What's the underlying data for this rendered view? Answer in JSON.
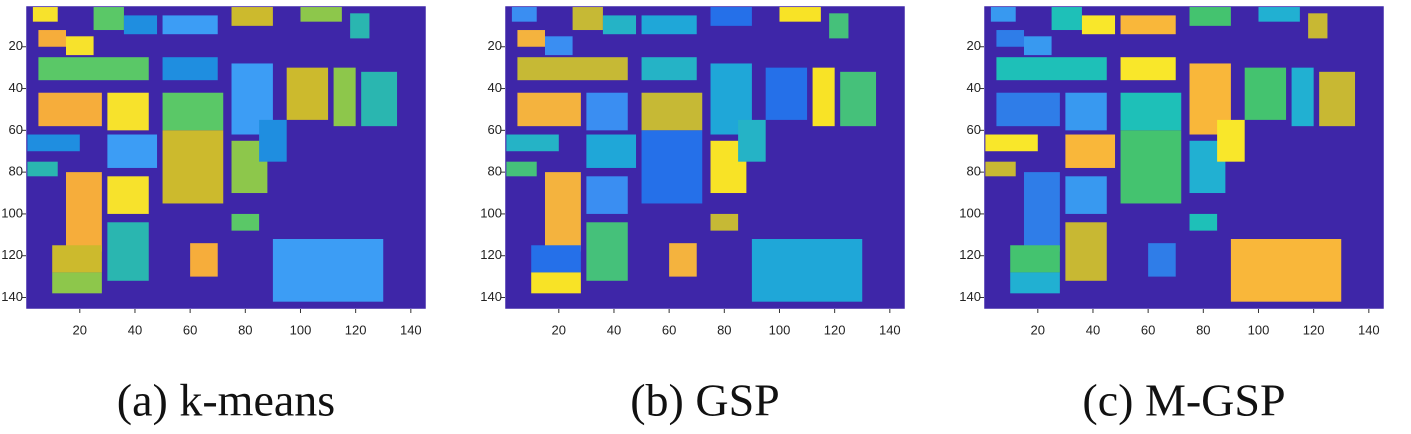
{
  "panels": [
    {
      "caption": "(a) k-means",
      "xlim": [
        0.5,
        145.5
      ],
      "ylim": [
        0.5,
        145.5
      ],
      "xticks": [
        20,
        40,
        60,
        80,
        100,
        120,
        140
      ],
      "yticks": [
        20,
        40,
        60,
        80,
        100,
        120,
        140
      ]
    },
    {
      "caption": "(b) GSP",
      "xlim": [
        0.5,
        145.5
      ],
      "ylim": [
        0.5,
        145.5
      ],
      "xticks": [
        20,
        40,
        60,
        80,
        100,
        120,
        140
      ],
      "yticks": [
        20,
        40,
        60,
        80,
        100,
        120,
        140
      ]
    },
    {
      "caption": "(c) M-GSP",
      "xlim": [
        0.5,
        145.5
      ],
      "ylim": [
        0.5,
        145.5
      ],
      "xticks": [
        20,
        40,
        60,
        80,
        100,
        120,
        140
      ],
      "yticks": [
        20,
        40,
        60,
        80,
        100,
        120,
        140
      ]
    }
  ]
}
